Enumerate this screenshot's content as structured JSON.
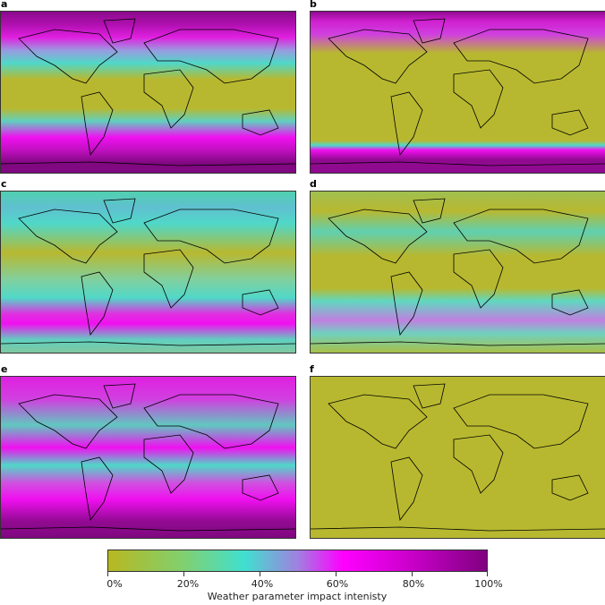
{
  "panels": [
    {
      "label": "a"
    },
    {
      "label": "b"
    },
    {
      "label": "c"
    },
    {
      "label": "d"
    },
    {
      "label": "e"
    },
    {
      "label": "f"
    }
  ],
  "colorbar": {
    "ticks": [
      "0%",
      "20%",
      "40%",
      "60%",
      "80%",
      "100%"
    ],
    "label": "Weather parameter impact intenisty",
    "colors": [
      "#b8b820",
      "#40e0d0",
      "#ff00ff",
      "#800080"
    ]
  }
}
